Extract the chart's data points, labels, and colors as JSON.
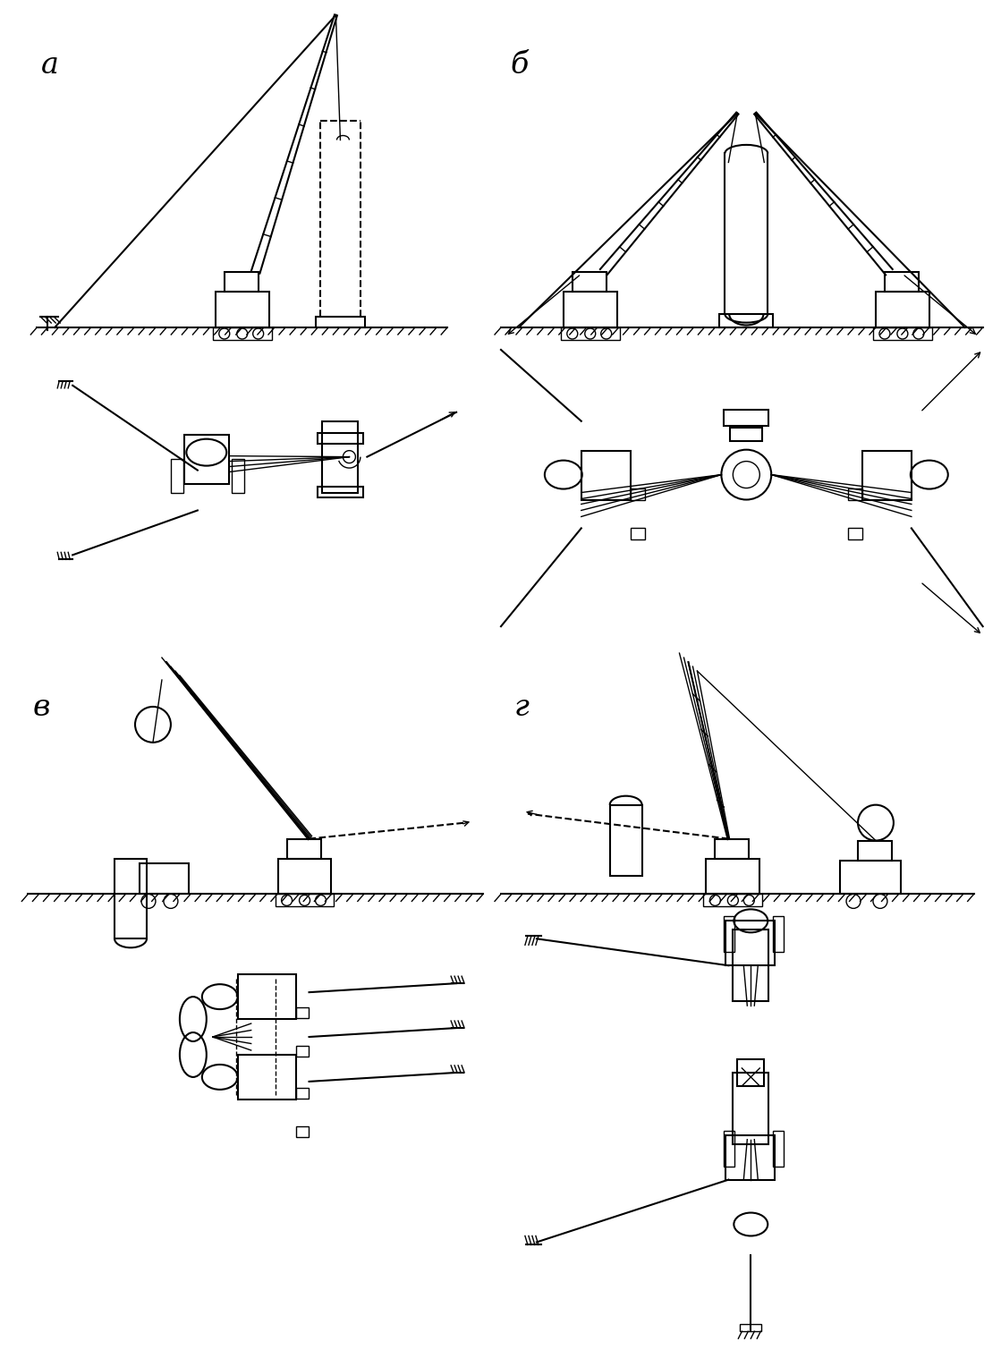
{
  "bg_color": "#ffffff",
  "line_color": "#000000",
  "fig_width": 11.19,
  "fig_height": 15.28,
  "panels": {
    "a_label": "а",
    "b_label": "б",
    "v_label": "в",
    "g_label": "г"
  }
}
